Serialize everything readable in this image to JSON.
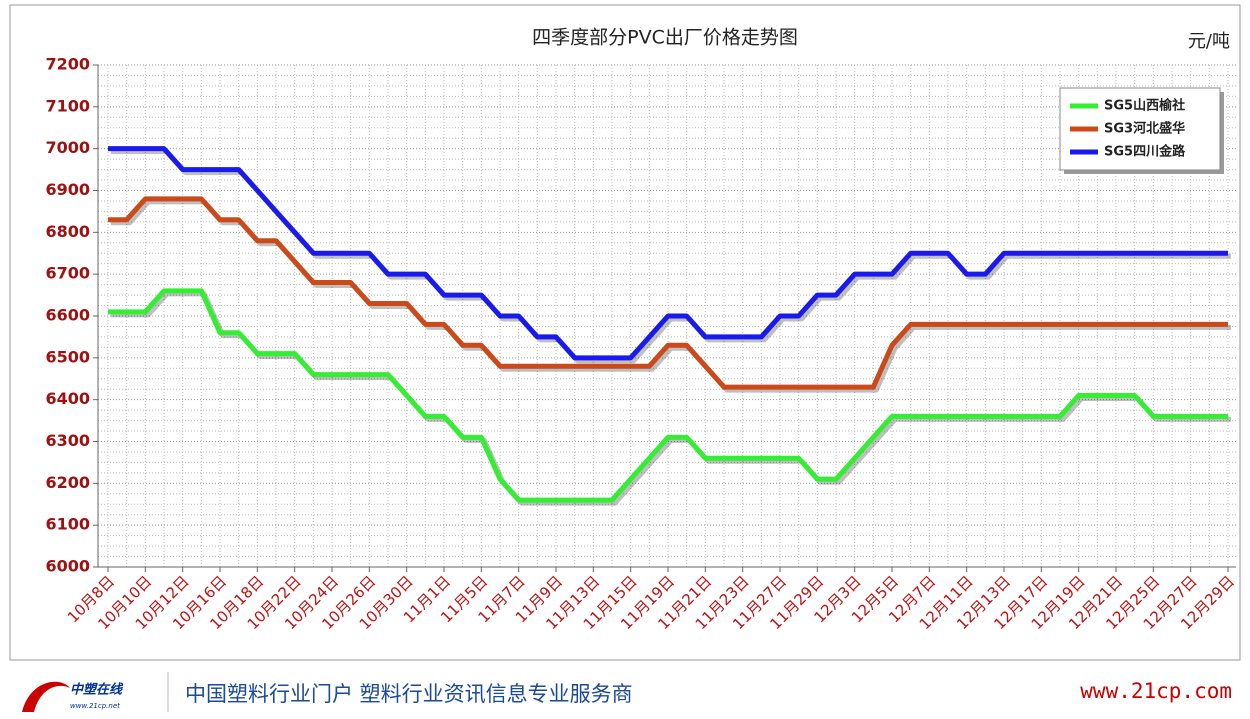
{
  "chart_data": {
    "type": "line",
    "title": "四季度部分PVC出厂价格走势图",
    "unit_label": "元/吨",
    "categories": [
      "10月8日",
      null,
      "10月10日",
      null,
      "10月12日",
      null,
      "10月16日",
      null,
      "10月18日",
      null,
      "10月22日",
      null,
      "10月24日",
      null,
      "10月26日",
      null,
      "10月30日",
      null,
      "11月1日",
      null,
      "11月5日",
      null,
      "11月7日",
      null,
      "11月9日",
      null,
      "11月13日",
      null,
      "11月15日",
      null,
      "11月19日",
      null,
      "11月21日",
      null,
      "11月23日",
      null,
      "11月27日",
      null,
      "11月29日",
      null,
      "12月3日",
      null,
      "12月5日",
      null,
      "12月7日",
      null,
      "12月11日",
      null,
      "12月13日",
      null,
      "12月17日",
      null,
      "12月19日",
      null,
      "12月21日",
      null,
      "12月25日",
      null,
      "12月27日",
      null,
      "12月29日"
    ],
    "series": [
      {
        "name": "SG5山西榆社",
        "color": "#33ee33",
        "values": [
          6610,
          6610,
          6610,
          6660,
          6660,
          6660,
          6560,
          6560,
          6510,
          6510,
          6510,
          6460,
          6460,
          6460,
          6460,
          6460,
          6410,
          6360,
          6360,
          6310,
          6310,
          6210,
          6160,
          6160,
          6160,
          6160,
          6160,
          6160,
          6210,
          6260,
          6310,
          6310,
          6260,
          6260,
          6260,
          6260,
          6260,
          6260,
          6210,
          6210,
          6260,
          6310,
          6360,
          6360,
          6360,
          6360,
          6360,
          6360,
          6360,
          6360,
          6360,
          6360,
          6410,
          6410,
          6410,
          6410,
          6360,
          6360,
          6360,
          6360,
          6360
        ]
      },
      {
        "name": "SG3河北盛华",
        "color": "#cc4a1a",
        "values": [
          6830,
          6830,
          6880,
          6880,
          6880,
          6880,
          6830,
          6830,
          6780,
          6780,
          6730,
          6680,
          6680,
          6680,
          6630,
          6630,
          6630,
          6580,
          6580,
          6530,
          6530,
          6480,
          6480,
          6480,
          6480,
          6480,
          6480,
          6480,
          6480,
          6480,
          6530,
          6530,
          6480,
          6430,
          6430,
          6430,
          6430,
          6430,
          6430,
          6430,
          6430,
          6430,
          6530,
          6580,
          6580,
          6580,
          6580,
          6580,
          6580,
          6580,
          6580,
          6580,
          6580,
          6580,
          6580,
          6580,
          6580,
          6580,
          6580,
          6580,
          6580
        ]
      },
      {
        "name": "SG5四川金路",
        "color": "#1a1aee",
        "values": [
          7000,
          7000,
          7000,
          7000,
          6950,
          6950,
          6950,
          6950,
          6900,
          6850,
          6800,
          6750,
          6750,
          6750,
          6750,
          6700,
          6700,
          6700,
          6650,
          6650,
          6650,
          6600,
          6600,
          6550,
          6550,
          6500,
          6500,
          6500,
          6500,
          6550,
          6600,
          6600,
          6550,
          6550,
          6550,
          6550,
          6600,
          6600,
          6650,
          6650,
          6700,
          6700,
          6700,
          6750,
          6750,
          6750,
          6700,
          6700,
          6750,
          6750,
          6750,
          6750,
          6750,
          6750,
          6750,
          6750,
          6750,
          6750,
          6750,
          6750,
          6750
        ]
      }
    ],
    "ylim": [
      6000,
      7200
    ],
    "yticks": [
      6000,
      6100,
      6200,
      6300,
      6400,
      6500,
      6600,
      6700,
      6800,
      6900,
      7000,
      7100,
      7200
    ],
    "grid": true,
    "legend": "upper right"
  },
  "footer": {
    "logo": "中塑在线",
    "logo_url": "www.21cp.net",
    "slogan": "中国塑料行业门户  塑料行业资讯信息专业服务商",
    "site": "www.21cp.com"
  }
}
